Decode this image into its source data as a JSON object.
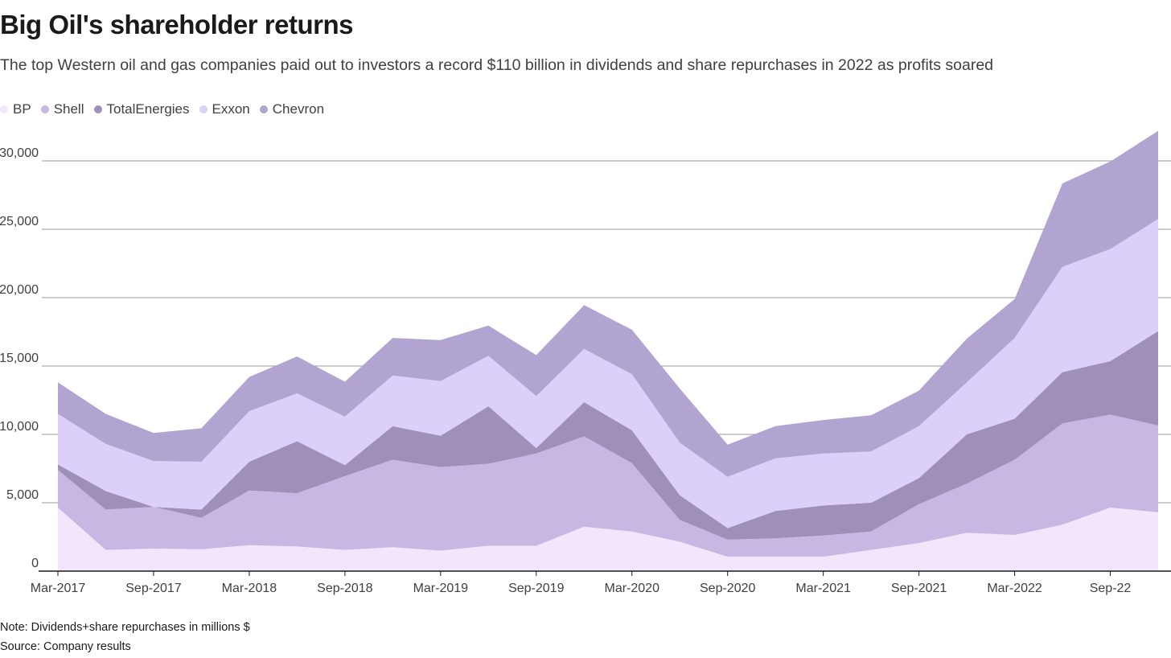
{
  "title": "Big Oil's shareholder returns",
  "subtitle": "The top Western oil and gas companies paid out to investors a record $110 billion in dividends and share repurchases in 2022 as profits soared",
  "note": "Note: Dividends+share repurchases in millions $",
  "source": "Source: Company results",
  "legend": [
    {
      "name": "BP",
      "color": "#f2e6fc"
    },
    {
      "name": "Shell",
      "color": "#c7b8e3"
    },
    {
      "name": "TotalEnergies",
      "color": "#9e90b9"
    },
    {
      "name": "Exxon",
      "color": "#dccffa"
    },
    {
      "name": "Chevron",
      "color": "#b2a4d1"
    }
  ],
  "chart_data": {
    "type": "area",
    "stacked": true,
    "title": "Big Oil's shareholder returns",
    "xlabel": "",
    "ylabel": "",
    "ylim": [
      0,
      32500
    ],
    "yticks": [
      0,
      5000,
      10000,
      15000,
      20000,
      25000,
      30000
    ],
    "ytick_labels": [
      "0",
      "5,000",
      "10,000",
      "15,000",
      "20,000",
      "25,000",
      "30,000"
    ],
    "x": [
      "Mar-2017",
      "Jun-2017",
      "Sep-2017",
      "Dec-2017",
      "Mar-2018",
      "Jun-2018",
      "Sep-2018",
      "Dec-2018",
      "Mar-2019",
      "Jun-2019",
      "Sep-2019",
      "Dec-2019",
      "Mar-2020",
      "Jun-2020",
      "Sep-2020",
      "Dec-2020",
      "Mar-2021",
      "Jun-2021",
      "Sep-2021",
      "Dec-2021",
      "Mar-2022",
      "Jun-2022",
      "Sep-22",
      "Dec-2022"
    ],
    "xtick_labels": [
      {
        "index": 0,
        "label": "Mar-2017"
      },
      {
        "index": 2,
        "label": "Sep-2017"
      },
      {
        "index": 4,
        "label": "Mar-2018"
      },
      {
        "index": 6,
        "label": "Sep-2018"
      },
      {
        "index": 8,
        "label": "Mar-2019"
      },
      {
        "index": 10,
        "label": "Sep-2019"
      },
      {
        "index": 12,
        "label": "Mar-2020"
      },
      {
        "index": 14,
        "label": "Sep-2020"
      },
      {
        "index": 16,
        "label": "Mar-2021"
      },
      {
        "index": 18,
        "label": "Sep-2021"
      },
      {
        "index": 20,
        "label": "Mar-2022"
      },
      {
        "index": 22,
        "label": "Sep-22"
      }
    ],
    "series": [
      {
        "name": "BP",
        "color": "#f2e6fc",
        "values": [
          4650,
          1550,
          1650,
          1600,
          1900,
          1800,
          1550,
          1750,
          1500,
          1850,
          1850,
          3250,
          2900,
          2150,
          1050,
          1050,
          1050,
          1550,
          2050,
          2800,
          2650,
          3400,
          4650,
          4300
        ]
      },
      {
        "name": "Shell",
        "color": "#c7b8e3",
        "values": [
          2750,
          2950,
          3050,
          2300,
          4000,
          3900,
          5400,
          6400,
          6100,
          6000,
          6750,
          6600,
          5000,
          1600,
          1250,
          1350,
          1550,
          1350,
          2850,
          3600,
          5500,
          7400,
          6800,
          6350
        ]
      },
      {
        "name": "TotalEnergies",
        "color": "#9e90b9",
        "values": [
          400,
          1350,
          0,
          600,
          2100,
          3800,
          800,
          2450,
          2300,
          4200,
          400,
          2500,
          2400,
          1800,
          850,
          2000,
          2200,
          2100,
          1900,
          3600,
          3000,
          3750,
          3900,
          6900
        ]
      },
      {
        "name": "Exxon",
        "color": "#dccffa",
        "values": [
          3700,
          3450,
          3350,
          3500,
          3700,
          3500,
          3550,
          3700,
          4000,
          3700,
          3800,
          3900,
          4100,
          3850,
          3750,
          3850,
          3800,
          3750,
          3800,
          3800,
          5900,
          7700,
          8200,
          8200
        ]
      },
      {
        "name": "Chevron",
        "color": "#b2a4d1",
        "values": [
          2300,
          2200,
          2050,
          2450,
          2500,
          2700,
          2550,
          2750,
          3000,
          2200,
          3000,
          3200,
          3250,
          3950,
          2350,
          2350,
          2450,
          2650,
          2600,
          3200,
          2850,
          6100,
          6400,
          6450
        ]
      }
    ]
  }
}
